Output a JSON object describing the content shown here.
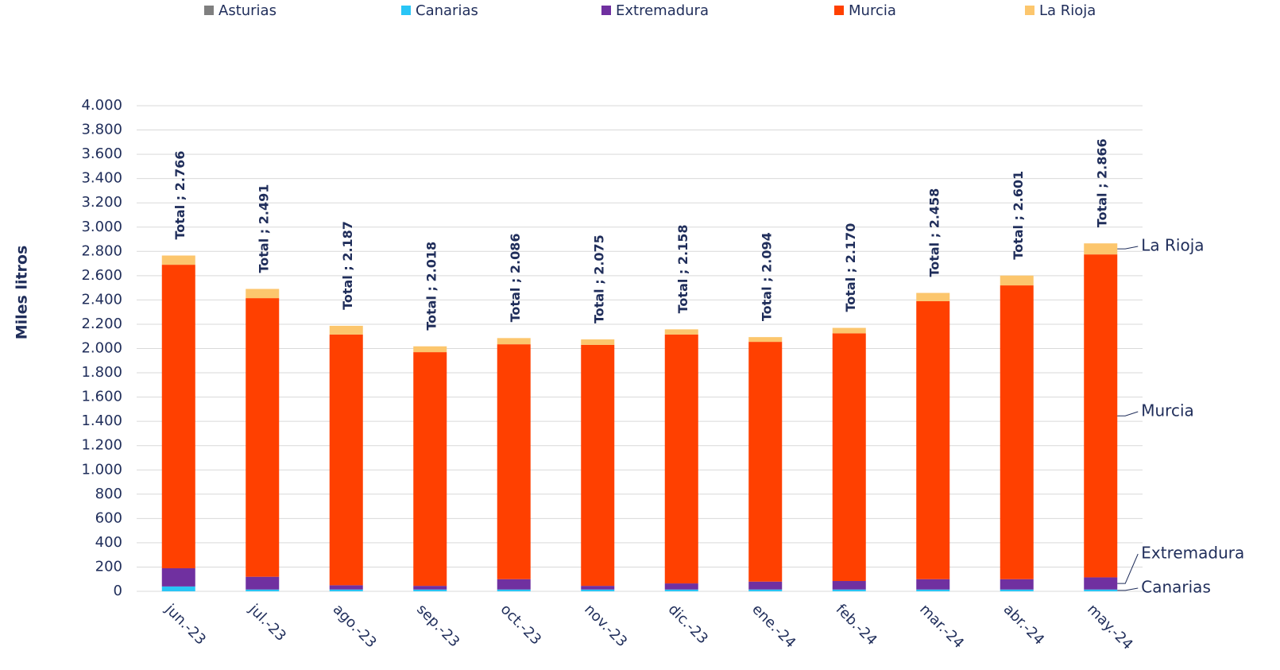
{
  "chart_data": {
    "type": "stacked_bar",
    "y_label": "Miles litros",
    "categories": [
      "jun.-23",
      "jul.-23",
      "ago.-23",
      "sep.-23",
      "oct.-23",
      "nov.-23",
      "dic.-23",
      "ene.-24",
      "feb.-24",
      "mar.-24",
      "abr.-24",
      "may.-24"
    ],
    "series": [
      {
        "name": "Asturias",
        "color": "#7f7f7f",
        "values": [
          0,
          0,
          0,
          0,
          0,
          0,
          0,
          0,
          0,
          0,
          0,
          0
        ]
      },
      {
        "name": "Canarias",
        "color": "#29c5f6",
        "values": [
          40,
          15,
          15,
          15,
          15,
          15,
          15,
          15,
          15,
          15,
          15,
          15
        ]
      },
      {
        "name": "Extremadura",
        "color": "#7030a0",
        "values": [
          150,
          105,
          35,
          30,
          85,
          30,
          50,
          65,
          70,
          85,
          85,
          100
        ]
      },
      {
        "name": "Murcia",
        "color": "#ff4000",
        "values": [
          2500,
          2295,
          2065,
          1925,
          1935,
          1985,
          2050,
          1975,
          2040,
          2290,
          2420,
          2660
        ]
      },
      {
        "name": "La Rioja",
        "color": "#fcc66d",
        "values": [
          76,
          76,
          72,
          48,
          51,
          45,
          43,
          39,
          45,
          68,
          81,
          91
        ]
      }
    ],
    "totals": {
      "values": [
        2766,
        2491,
        2187,
        2018,
        2086,
        2075,
        2158,
        2094,
        2170,
        2458,
        2601,
        2866
      ],
      "value_labels": [
        "Total ; 2.766",
        "Total ; 2.491",
        "Total ; 2.187",
        "Total ; 2.018",
        "Total ; 2.086",
        "Total ; 2.075",
        "Total ; 2.158",
        "Total ; 2.094",
        "Total ; 2.170",
        "Total ; 2.458",
        "Total ; 2.601",
        "Total ; 2.866"
      ]
    },
    "ylim": [
      0,
      4000
    ],
    "yticks": [
      0,
      200,
      400,
      600,
      800,
      {
        "value": 1000,
        "label": "1.000"
      },
      {
        "value": 1200,
        "label": "1.200"
      },
      {
        "value": 1400,
        "label": "1.400"
      },
      {
        "value": 1600,
        "label": "1.600"
      },
      {
        "value": 1800,
        "label": "1.800"
      },
      {
        "value": 2000,
        "label": "2.000"
      },
      {
        "value": 2200,
        "label": "2.200"
      },
      {
        "value": 2400,
        "label": "2.400"
      },
      {
        "value": 2600,
        "label": "2.600"
      },
      {
        "value": 2800,
        "label": "2.800"
      },
      {
        "value": 3000,
        "label": "3.000"
      },
      {
        "value": 3200,
        "label": "3.200"
      },
      {
        "value": 3400,
        "label": "3.400"
      },
      {
        "value": 3600,
        "label": "3.600"
      },
      {
        "value": 3800,
        "label": "3.800"
      },
      {
        "value": 4000,
        "label": "4.000"
      }
    ],
    "grid": true,
    "legend": "top"
  }
}
